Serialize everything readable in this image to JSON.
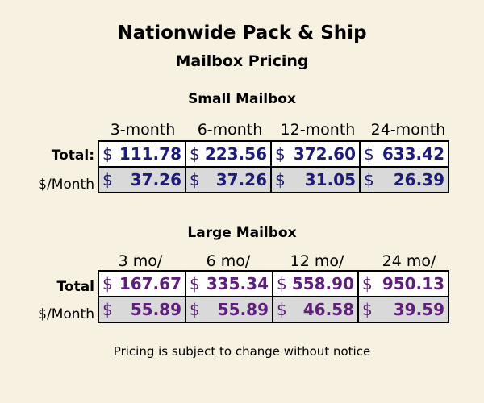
{
  "header": {
    "title": "Nationwide Pack & Ship",
    "subtitle": "Mailbox Pricing"
  },
  "small": {
    "title": "Small Mailbox",
    "columns": [
      "3-month",
      "6-month",
      "12-month",
      "24-month"
    ],
    "row_labels": {
      "total": "Total:",
      "monthly": "$/Month"
    },
    "currency": "$",
    "totals": [
      "111.78",
      "223.56",
      "372.60",
      "633.42"
    ],
    "monthly": [
      "37.26",
      "37.26",
      "31.05",
      "26.39"
    ]
  },
  "large": {
    "title": "Large Mailbox",
    "columns": [
      "3 mo/",
      "6 mo/",
      "12 mo/",
      "24 mo/"
    ],
    "row_labels": {
      "total": "Total",
      "monthly": "$/Month"
    },
    "currency": "$",
    "totals": [
      "167.67",
      "335.34",
      "558.90",
      "950.13"
    ],
    "monthly": [
      "55.89",
      "55.89",
      "46.58",
      "39.59"
    ]
  },
  "footer": {
    "note": "Pricing is subject to change without notice"
  },
  "colors": {
    "background": "#f7f1e1",
    "small_text": "#1d1a7a",
    "large_text": "#5e1f7a",
    "monthly_row_bg": "#d9d9d9"
  }
}
